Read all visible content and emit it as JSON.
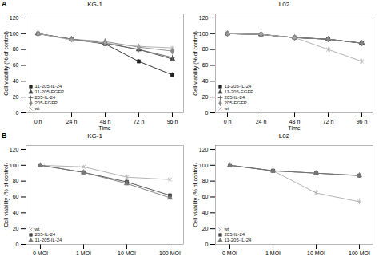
{
  "chart_data": [
    {
      "type": "line",
      "title": "KG-1",
      "annotations": [
        "A"
      ],
      "xlabel": "Time",
      "ylabel": "Cell viability (% of control)",
      "categories": [
        "0 h",
        "24 h",
        "48 h",
        "72 h",
        "96 h"
      ],
      "series": [
        {
          "name": "11-205-IL-24",
          "color": "#222222",
          "marker": "square",
          "line_style": "solid",
          "values": [
            100,
            93,
            87,
            65,
            48
          ],
          "yerr": [
            1.0,
            2.0,
            2.5,
            2.5,
            3.0
          ]
        },
        {
          "name": "11-205-EGFP",
          "color": "#444444",
          "marker": "triangle",
          "line_style": "solid",
          "values": [
            100,
            93,
            88,
            80,
            68
          ],
          "yerr": [
            1.0,
            2.0,
            2.0,
            2.0,
            2.5
          ]
        },
        {
          "name": "205-IL-24",
          "color": "#666666",
          "marker": "plus",
          "line_style": "solid",
          "values": [
            100,
            93,
            88,
            80,
            70
          ],
          "yerr": [
            1.0,
            2.0,
            2.0,
            2.0,
            2.5
          ]
        },
        {
          "name": "205-EGFP",
          "color": "#888888",
          "marker": "diamond",
          "line_style": "solid",
          "values": [
            100,
            93,
            90,
            83,
            78
          ],
          "yerr": [
            1.0,
            2.0,
            2.0,
            2.0,
            2.0
          ]
        },
        {
          "name": "wt",
          "color": "#aaaaaa",
          "marker": "x",
          "line_style": "solid",
          "values": [
            100,
            92,
            88,
            84,
            82
          ],
          "yerr": [
            1.0,
            2.0,
            2.0,
            2.0,
            2.0
          ]
        }
      ],
      "ylim": [
        0,
        125
      ],
      "yticks": [
        0,
        20,
        40,
        60,
        80,
        100,
        120
      ],
      "legend": "lower left"
    },
    {
      "type": "line",
      "title": "L02",
      "xlabel": "Time",
      "ylabel": "Cell viability (% of control)",
      "categories": [
        "0 h",
        "24 h",
        "48 h",
        "72 h",
        "96 h"
      ],
      "series": [
        {
          "name": "11-205-IL-24",
          "color": "#222222",
          "marker": "square",
          "line_style": "solid",
          "values": [
            100,
            99,
            95,
            93,
            88
          ],
          "yerr": [
            1.0,
            1.0,
            2.0,
            2.0,
            2.0
          ]
        },
        {
          "name": "11-205-EGFP",
          "color": "#444444",
          "marker": "triangle",
          "line_style": "solid",
          "values": [
            100,
            99,
            95,
            93,
            88
          ],
          "yerr": [
            1.0,
            1.0,
            2.0,
            2.0,
            2.0
          ]
        },
        {
          "name": "205-IL-24",
          "color": "#666666",
          "marker": "plus",
          "line_style": "solid",
          "values": [
            100,
            99,
            95,
            93,
            88
          ],
          "yerr": [
            1.0,
            1.0,
            2.0,
            2.0,
            2.0
          ]
        },
        {
          "name": "205-EGFP",
          "color": "#888888",
          "marker": "diamond",
          "line_style": "solid",
          "values": [
            100,
            99,
            95,
            93,
            88
          ],
          "yerr": [
            1.0,
            1.0,
            2.0,
            2.0,
            2.0
          ]
        },
        {
          "name": "wt",
          "color": "#aaaaaa",
          "marker": "x",
          "line_style": "solid",
          "values": [
            100,
            99,
            95,
            80,
            65
          ],
          "yerr": [
            1.0,
            1.0,
            2.0,
            3.0,
            3.0
          ]
        }
      ],
      "ylim": [
        0,
        125
      ],
      "yticks": [
        0,
        20,
        40,
        60,
        80,
        100,
        120
      ],
      "legend": "lower left"
    },
    {
      "type": "line",
      "title": "KG-1",
      "annotations": [
        "B"
      ],
      "ylabel": "Cell viability (% of control)",
      "categories": [
        "0 MOI",
        "1 MOI",
        "10 MOI",
        "100 MOI"
      ],
      "series": [
        {
          "name": "wt",
          "color": "#aaaaaa",
          "marker": "x",
          "line_style": "solid",
          "values": [
            100,
            98,
            85,
            82
          ],
          "yerr": [
            1.0,
            2.0,
            3.0,
            4.0
          ]
        },
        {
          "name": "205-IL-24",
          "color": "#444444",
          "marker": "square",
          "line_style": "solid",
          "values": [
            100,
            91,
            79,
            62
          ],
          "yerr": [
            1.0,
            2.0,
            3.0,
            4.0
          ]
        },
        {
          "name": "11-205-IL-24",
          "color": "#777777",
          "marker": "triangle",
          "line_style": "solid",
          "values": [
            100,
            91,
            77,
            59
          ],
          "yerr": [
            1.0,
            2.0,
            3.0,
            4.0
          ]
        }
      ],
      "ylim": [
        0,
        125
      ],
      "yticks": [
        0,
        20,
        40,
        60,
        80,
        100,
        120
      ],
      "legend": "lower left"
    },
    {
      "type": "line",
      "title": "L02",
      "ylabel": "Cell viability (% of control)",
      "categories": [
        "0 MOI",
        "1 MOI",
        "10 MOI",
        "100 MOI"
      ],
      "series": [
        {
          "name": "wt",
          "color": "#aaaaaa",
          "marker": "x",
          "line_style": "solid",
          "values": [
            100,
            93,
            65,
            54
          ],
          "yerr": [
            1.0,
            2.0,
            3.5,
            4.0
          ]
        },
        {
          "name": "205-IL-24",
          "color": "#444444",
          "marker": "square",
          "line_style": "solid",
          "values": [
            100,
            93,
            90,
            87
          ],
          "yerr": [
            1.0,
            2.0,
            2.5,
            3.0
          ]
        },
        {
          "name": "11-205-IL-24",
          "color": "#777777",
          "marker": "triangle",
          "line_style": "solid",
          "values": [
            100,
            93,
            90,
            87
          ],
          "yerr": [
            1.0,
            2.0,
            2.5,
            3.0
          ]
        }
      ],
      "ylim": [
        0,
        125
      ],
      "yticks": [
        0,
        20,
        40,
        60,
        80,
        100,
        120
      ],
      "legend": "lower left"
    }
  ]
}
